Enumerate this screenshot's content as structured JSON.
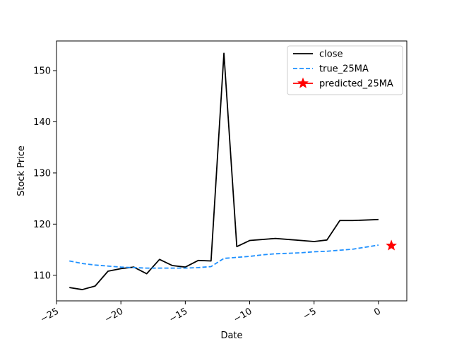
{
  "chart_data": {
    "type": "line",
    "xlabel": "Date",
    "ylabel": "Stock Price",
    "xlim": [
      -25.0,
      2.2
    ],
    "ylim": [
      105.0,
      155.8
    ],
    "xticks": [
      -25,
      -20,
      -15,
      -10,
      -5,
      0
    ],
    "xtick_labels": [
      "−25",
      "−20",
      "−15",
      "−10",
      "−5",
      "0"
    ],
    "yticks": [
      110,
      120,
      130,
      140,
      150
    ],
    "ytick_labels": [
      "110",
      "120",
      "130",
      "140",
      "150"
    ],
    "xtick_rotation": 30,
    "grid": false,
    "legend": {
      "placement": "top-right",
      "entries": [
        "close",
        "true_25MA",
        "predicted_25MA"
      ]
    },
    "series": [
      {
        "name": "close",
        "style": "solid",
        "color": "#000000",
        "x": [
          -24,
          -23,
          -22,
          -21,
          -20,
          -19,
          -18,
          -17,
          -16,
          -15,
          -14,
          -13,
          -12,
          -11,
          -10,
          -9,
          -8,
          -7,
          -6,
          -5,
          -4,
          -3,
          -2,
          -1,
          0
        ],
        "y": [
          107.6,
          107.2,
          107.9,
          110.8,
          111.3,
          111.6,
          110.3,
          113.1,
          111.9,
          111.6,
          112.9,
          112.8,
          153.4,
          115.6,
          116.8,
          117.0,
          117.2,
          117.0,
          116.8,
          116.6,
          116.9,
          120.7,
          120.7,
          120.8,
          120.9
        ]
      },
      {
        "name": "true_25MA",
        "style": "dashed",
        "color": "#1e90ff",
        "x": [
          -24,
          -23,
          -22,
          -21,
          -20,
          -19,
          -18,
          -17,
          -16,
          -15,
          -14,
          -13,
          -12,
          -11,
          -10,
          -9,
          -8,
          -7,
          -6,
          -5,
          -4,
          -3,
          -2,
          -1,
          0
        ],
        "y": [
          112.8,
          112.3,
          112.0,
          111.8,
          111.6,
          111.5,
          111.4,
          111.4,
          111.4,
          111.4,
          111.5,
          111.7,
          113.3,
          113.5,
          113.7,
          114.0,
          114.2,
          114.3,
          114.4,
          114.6,
          114.7,
          114.9,
          115.1,
          115.5,
          115.9
        ]
      },
      {
        "name": "predicted_25MA",
        "style": "marker",
        "marker": "star",
        "color": "#ff0000",
        "x": [
          1
        ],
        "y": [
          115.8
        ]
      }
    ]
  }
}
